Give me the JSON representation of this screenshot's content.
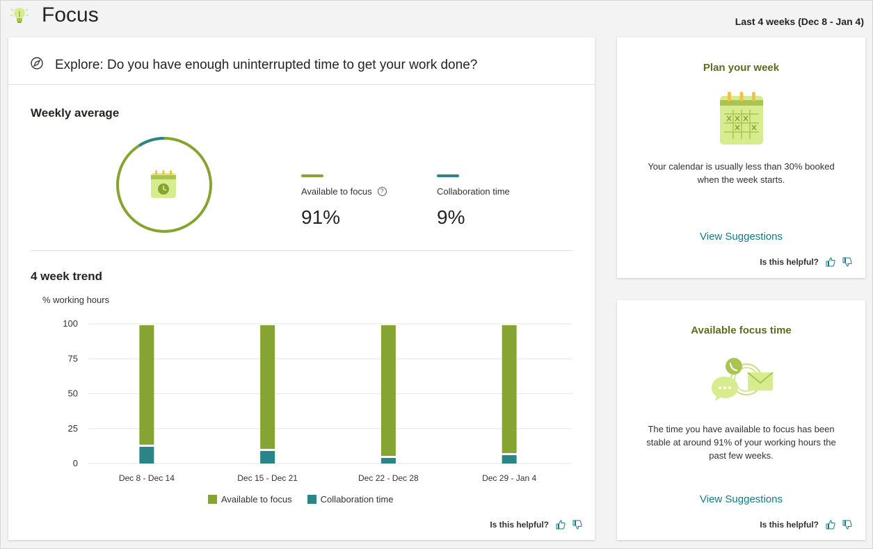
{
  "header": {
    "title": "Focus",
    "date_range": "Last 4 weeks (Dec 8 - Jan 4)"
  },
  "main": {
    "explore_text": "Explore: Do you have enough uninterrupted time to get your work done?",
    "weekly_average_title": "Weekly average",
    "available_label": "Available to focus",
    "available_value": "91%",
    "collab_label": "Collaboration time",
    "collab_value": "9%",
    "trend_title": "4 week trend",
    "feedback_label": "Is this helpful?"
  },
  "colors": {
    "focus": "#86a432",
    "collab": "#2b8487"
  },
  "chart_data": {
    "type": "bar",
    "stacked": true,
    "ylabel": "% working hours",
    "ylim": [
      0,
      100
    ],
    "yticks": [
      0,
      25,
      50,
      75,
      100
    ],
    "categories": [
      "Dec 8 - Dec 14",
      "Dec 15 - Dec 21",
      "Dec 22 - Dec 28",
      "Dec 29 - Jan 4"
    ],
    "series": [
      {
        "name": "Collaboration time",
        "values": [
          12,
          9,
          4,
          6
        ]
      },
      {
        "name": "Available to focus",
        "values": [
          88,
          91,
          96,
          94
        ]
      }
    ],
    "legend": [
      "Available to focus",
      "Collaboration time"
    ]
  },
  "plan_card": {
    "title": "Plan your week",
    "text": "Your calendar is usually less than 30% booked when the week starts.",
    "link": "View Suggestions",
    "feedback_label": "Is this helpful?"
  },
  "focus_card": {
    "title": "Available focus time",
    "text": "The time you have available to focus has been stable at around 91% of your working hours the past few weeks.",
    "link": "View Suggestions",
    "feedback_label": "Is this helpful?"
  }
}
